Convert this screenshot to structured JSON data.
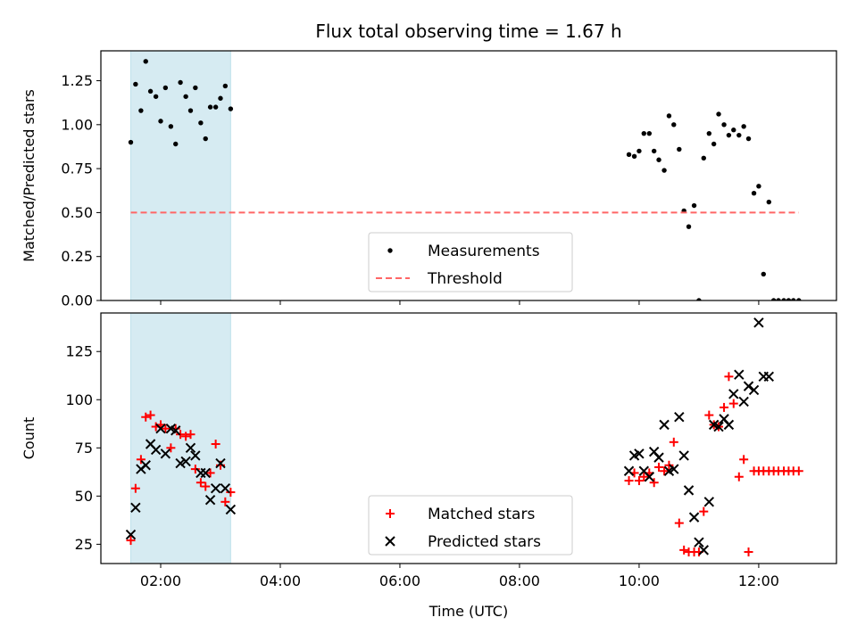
{
  "chart_data": {
    "title": "Flux total observing time = 1.67 h",
    "xlabel": "Time (UTC)",
    "x_unit": "hours UTC",
    "xlim": [
      1.0,
      13.3
    ],
    "x_ticks": [
      2,
      4,
      6,
      8,
      10,
      12
    ],
    "x_tick_labels": [
      "02:00",
      "04:00",
      "06:00",
      "08:00",
      "10:00",
      "12:00"
    ],
    "shaded_span": {
      "start": 1.5,
      "end": 3.17,
      "color": "#add8e6"
    },
    "panels": [
      {
        "type": "scatter",
        "ylabel": "Matched/Predicted stars",
        "ylim": [
          0,
          1.42
        ],
        "y_ticks": [
          0,
          0.25,
          0.5,
          0.75,
          1.0,
          1.25
        ],
        "y_tick_labels": [
          "0.00",
          "0.25",
          "0.50",
          "0.75",
          "1.00",
          "1.25"
        ],
        "show_x_tick_labels": false,
        "legend_position": "lower-center",
        "series": [
          {
            "name": "Measurements",
            "marker": "dot",
            "color": "#000000",
            "x": [
              1.5,
              1.58,
              1.67,
              1.75,
              1.83,
              1.92,
              2.0,
              2.08,
              2.17,
              2.25,
              2.33,
              2.42,
              2.5,
              2.58,
              2.67,
              2.75,
              2.83,
              2.92,
              3.0,
              3.08,
              3.17,
              9.83,
              9.92,
              10.0,
              10.08,
              10.17,
              10.25,
              10.33,
              10.42,
              10.5,
              10.58,
              10.67,
              10.75,
              10.83,
              10.92,
              11.0,
              11.08,
              11.17,
              11.25,
              11.33,
              11.42,
              11.5,
              11.58,
              11.67,
              11.75,
              11.83,
              11.92,
              12.0,
              12.08,
              12.17,
              12.25,
              12.33,
              12.42,
              12.5,
              12.58,
              12.67
            ],
            "y": [
              0.9,
              1.23,
              1.08,
              1.36,
              1.19,
              1.16,
              1.02,
              1.21,
              0.99,
              0.89,
              1.24,
              1.16,
              1.08,
              1.21,
              1.01,
              0.92,
              1.1,
              1.1,
              1.15,
              1.22,
              1.09,
              0.83,
              0.82,
              0.85,
              0.95,
              0.95,
              0.85,
              0.8,
              0.74,
              1.05,
              1.0,
              0.86,
              0.51,
              0.42,
              0.54,
              0.0,
              0.81,
              0.95,
              0.89,
              1.06,
              1.0,
              0.94,
              0.97,
              0.94,
              0.99,
              0.92,
              0.61,
              0.65,
              0.15,
              0.56,
              0.0,
              0.0,
              0.0,
              0.0,
              0.0,
              0.0
            ]
          },
          {
            "name": "Threshold",
            "type": "line",
            "style": "dashed",
            "color": "#ff6666",
            "x": [
              1.5,
              12.67
            ],
            "y": [
              0.5,
              0.5
            ]
          }
        ]
      },
      {
        "type": "scatter",
        "ylabel": "Count",
        "ylim": [
          15,
          145
        ],
        "y_ticks": [
          25,
          50,
          75,
          100,
          125
        ],
        "y_tick_labels": [
          "25",
          "50",
          "75",
          "100",
          "125"
        ],
        "show_x_tick_labels": true,
        "legend_position": "lower-center",
        "series": [
          {
            "name": "Matched stars",
            "marker": "plus",
            "color": "#ff0000",
            "x": [
              1.5,
              1.58,
              1.67,
              1.75,
              1.83,
              1.92,
              2.0,
              2.08,
              2.17,
              2.25,
              2.33,
              2.42,
              2.5,
              2.58,
              2.67,
              2.75,
              2.83,
              2.92,
              3.0,
              3.08,
              3.17,
              9.83,
              9.92,
              10.0,
              10.08,
              10.17,
              10.25,
              10.33,
              10.42,
              10.5,
              10.58,
              10.67,
              10.75,
              10.83,
              10.92,
              11.0,
              11.08,
              11.17,
              11.25,
              11.33,
              11.42,
              11.5,
              11.58,
              11.67,
              11.75,
              11.83,
              11.92,
              12.0,
              12.08,
              12.17,
              12.25,
              12.33,
              12.42,
              12.5,
              12.58,
              12.67
            ],
            "y": [
              27,
              54,
              69,
              91,
              92,
              86,
              87,
              85,
              75,
              85,
              82,
              81,
              82,
              64,
              57,
              55,
              62,
              77,
              66,
              47,
              52,
              58,
              62,
              58,
              60,
              62,
              57,
              65,
              63,
              66,
              78,
              36,
              22,
              21,
              21,
              21,
              42,
              92,
              87,
              86,
              96,
              112,
              98,
              60,
              69,
              21,
              63,
              63,
              63,
              63,
              63,
              63,
              63,
              63,
              63,
              63
            ]
          },
          {
            "name": "Predicted stars",
            "marker": "x",
            "color": "#000000",
            "x": [
              1.5,
              1.58,
              1.67,
              1.75,
              1.83,
              1.92,
              2.0,
              2.08,
              2.17,
              2.25,
              2.33,
              2.42,
              2.5,
              2.58,
              2.67,
              2.75,
              2.83,
              2.92,
              3.0,
              3.08,
              3.17,
              9.83,
              9.92,
              10.0,
              10.08,
              10.17,
              10.25,
              10.33,
              10.42,
              10.5,
              10.58,
              10.67,
              10.75,
              10.83,
              10.92,
              11.0,
              11.08,
              11.17,
              11.25,
              11.33,
              11.42,
              11.5,
              11.58,
              11.67,
              11.75,
              11.83,
              11.92,
              12.0,
              12.08,
              12.17
            ],
            "y": [
              30,
              44,
              64,
              66,
              77,
              74,
              85,
              72,
              85,
              84,
              67,
              68,
              75,
              71,
              62,
              62,
              48,
              54,
              67,
              54,
              43,
              63,
              71,
              72,
              63,
              60,
              73,
              70,
              87,
              63,
              64,
              91,
              71,
              53,
              39,
              26,
              22,
              47,
              87,
              86,
              90,
              87,
              103,
              113,
              99,
              107,
              105,
              140,
              112,
              112
            ]
          }
        ]
      }
    ]
  }
}
